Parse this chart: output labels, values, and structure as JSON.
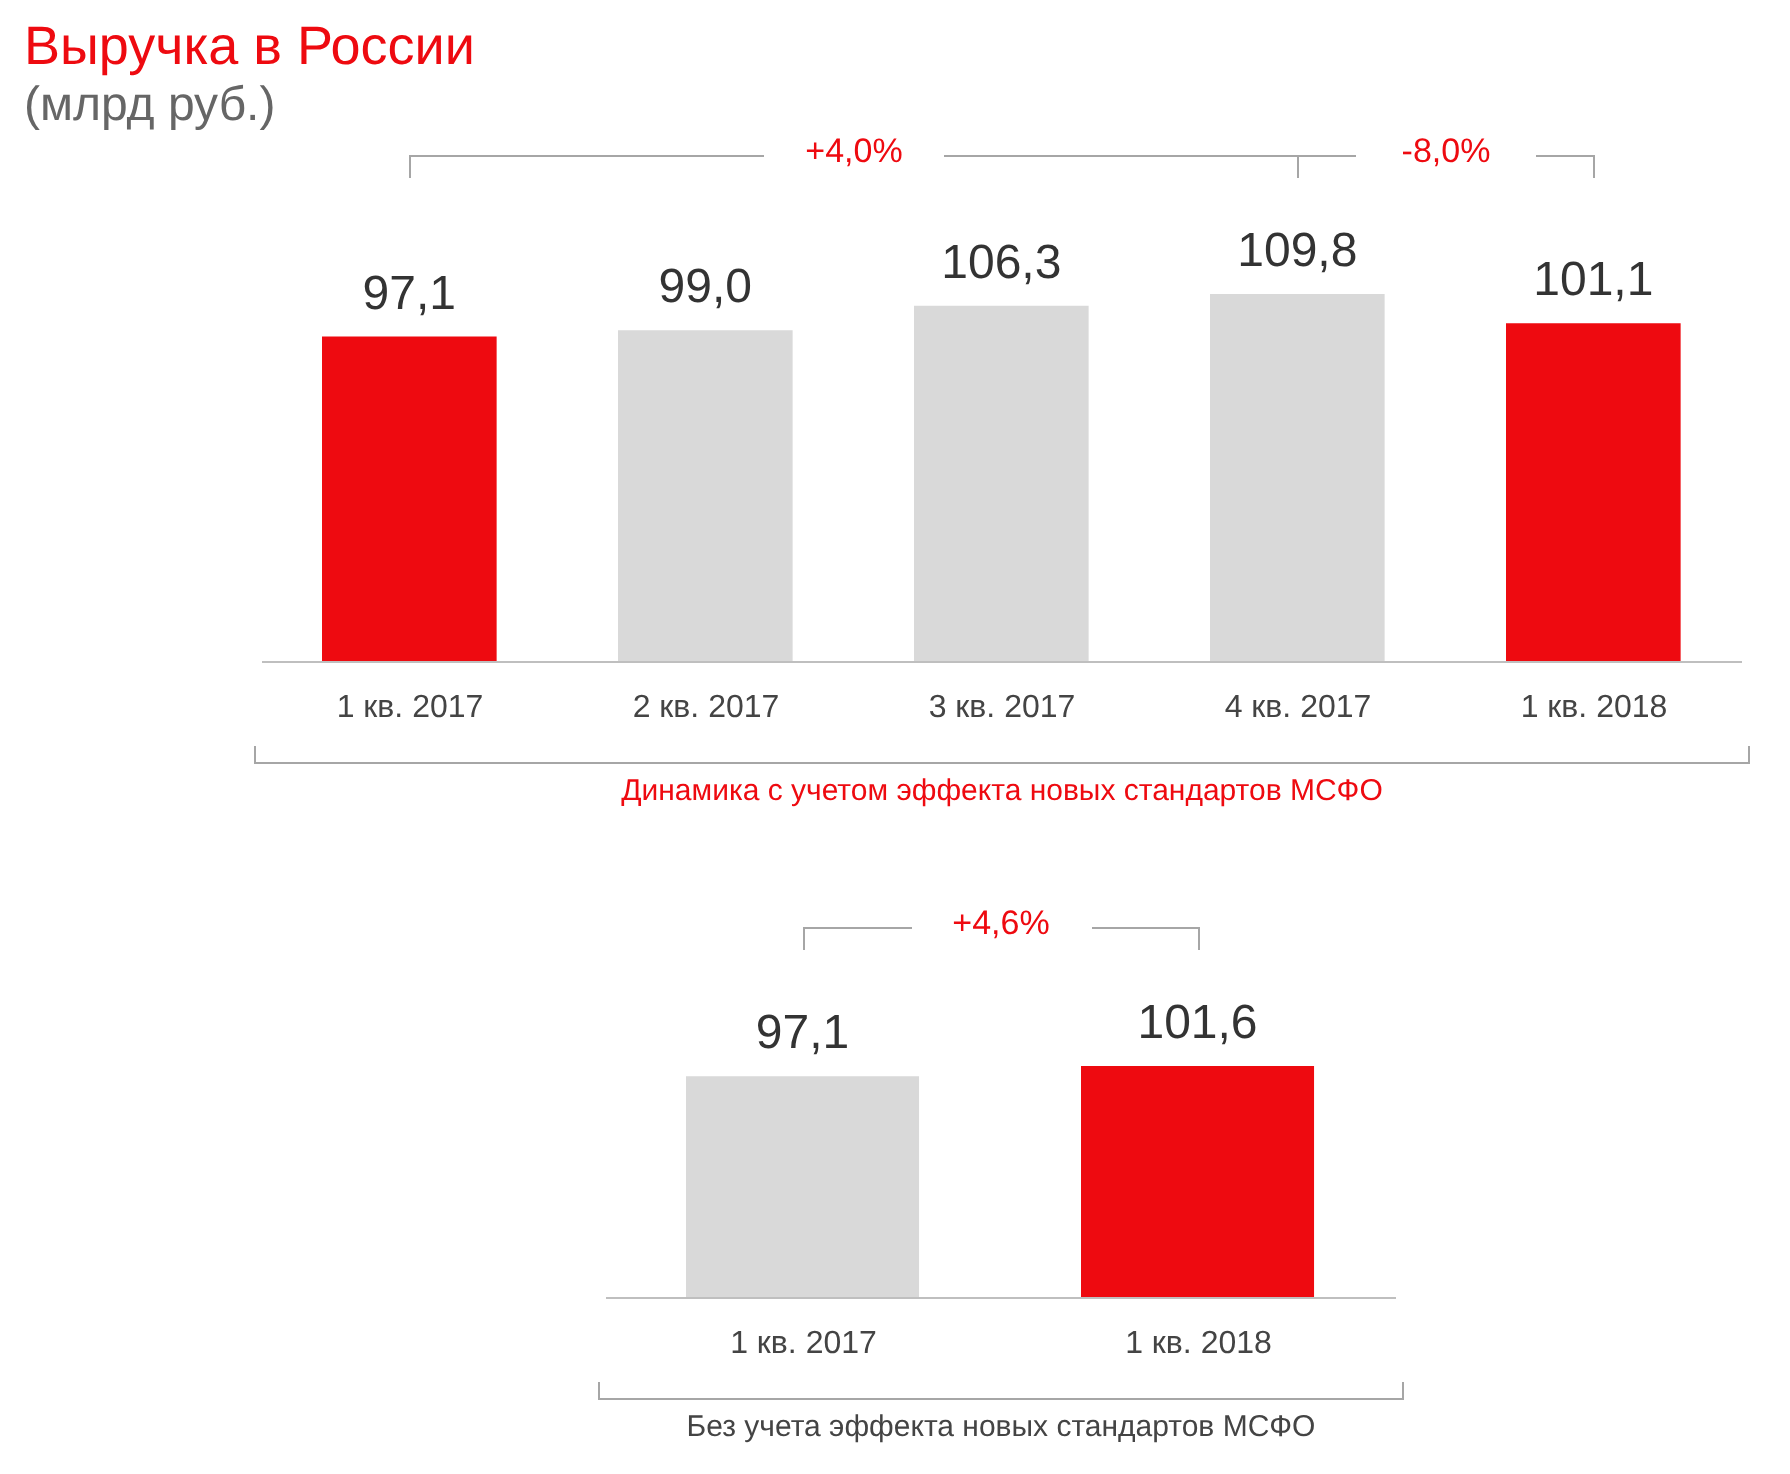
{
  "chart_data": [
    {
      "type": "bar",
      "title": "Выручка в России",
      "subtitle": "(млрд руб.)",
      "categories": [
        "1 кв. 2017",
        "2 кв. 2017",
        "3 кв. 2017",
        "4 кв. 2017",
        "1 кв. 2018"
      ],
      "values": [
        97.1,
        99.0,
        106.3,
        109.8,
        101.1
      ],
      "colors": [
        "#ee0a10",
        "#d9d9d9",
        "#d9d9d9",
        "#d9d9d9",
        "#ee0a10"
      ],
      "value_labels": [
        "97,1",
        "99,0",
        "106,3",
        "109,8",
        "101,1"
      ],
      "annotations": [
        "+4,0%",
        "-8,0%",
        "Динамика с учетом эффекта новых стандартов МСФО"
      ],
      "tick_labels": "x",
      "grid": false,
      "legend": false
    },
    {
      "type": "bar",
      "categories": [
        "1 кв. 2017",
        "1 кв. 2018"
      ],
      "values": [
        97.1,
        101.6
      ],
      "colors": [
        "#d9d9d9",
        "#ee0a10"
      ],
      "value_labels": [
        "97,1",
        "101,6"
      ],
      "annotations": [
        "+4,6%",
        "Без учета эффекта новых стандартов МСФО"
      ],
      "tick_labels": "x",
      "grid": false,
      "legend": false
    }
  ]
}
